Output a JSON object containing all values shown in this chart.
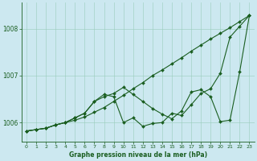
{
  "xlabel": "Graphe pression niveau de la mer (hPa)",
  "background_color": "#cce8f0",
  "plot_bg_color": "#cce8f0",
  "grid_color": "#99ccbb",
  "line_color": "#1a5e20",
  "ylim": [
    1005.6,
    1008.55
  ],
  "xlim": [
    -0.5,
    23.5
  ],
  "yticks": [
    1006,
    1007,
    1008
  ],
  "xticks": [
    0,
    1,
    2,
    3,
    4,
    5,
    6,
    7,
    8,
    9,
    10,
    11,
    12,
    13,
    14,
    15,
    16,
    17,
    18,
    19,
    20,
    21,
    22,
    23
  ],
  "series": {
    "line1": [
      1005.82,
      1005.85,
      1005.88,
      1005.95,
      1006.0,
      1006.05,
      1006.12,
      1006.22,
      1006.32,
      1006.45,
      1006.58,
      1006.72,
      1006.85,
      1007.0,
      1007.12,
      1007.25,
      1007.38,
      1007.52,
      1007.65,
      1007.78,
      1007.9,
      1008.02,
      1008.15,
      1008.28
    ],
    "line2": [
      1005.82,
      1005.85,
      1005.88,
      1005.95,
      1006.0,
      1006.1,
      1006.2,
      1006.45,
      1006.6,
      1006.55,
      1006.0,
      1006.1,
      1005.92,
      1005.98,
      1006.0,
      1006.2,
      1006.15,
      1006.38,
      1006.62,
      1006.72,
      1007.05,
      1007.82,
      1008.05,
      1008.28
    ],
    "line3": [
      1005.82,
      1005.85,
      1005.88,
      1005.95,
      1006.0,
      1006.1,
      1006.2,
      1006.45,
      1006.55,
      1006.62,
      1006.75,
      1006.6,
      1006.45,
      1006.3,
      1006.18,
      1006.08,
      1006.25,
      1006.65,
      1006.7,
      1006.55,
      1006.02,
      1006.05,
      1007.08,
      1008.28
    ]
  }
}
